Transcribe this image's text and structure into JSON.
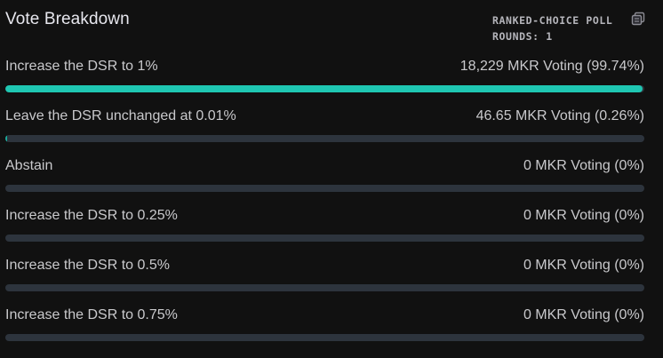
{
  "header": {
    "title": "Vote Breakdown",
    "poll_type": "RANKED-CHOICE POLL",
    "rounds": "ROUNDS: 1",
    "icon": "copy-icon"
  },
  "colors": {
    "background": "#111111",
    "track": "#2d343d",
    "fill": "#1fc7b2"
  },
  "options": [
    {
      "label": "Increase the DSR to 1%",
      "votes": "18,229 MKR Voting (99.74%)",
      "percent": 99.74
    },
    {
      "label": "Leave the DSR unchanged at 0.01%",
      "votes": "46.65 MKR Voting (0.26%)",
      "percent": 0.26
    },
    {
      "label": "Abstain",
      "votes": "0 MKR Voting (0%)",
      "percent": 0
    },
    {
      "label": "Increase the DSR to 0.25%",
      "votes": "0 MKR Voting (0%)",
      "percent": 0
    },
    {
      "label": "Increase the DSR to 0.5%",
      "votes": "0 MKR Voting (0%)",
      "percent": 0
    },
    {
      "label": "Increase the DSR to 0.75%",
      "votes": "0 MKR Voting (0%)",
      "percent": 0
    }
  ]
}
